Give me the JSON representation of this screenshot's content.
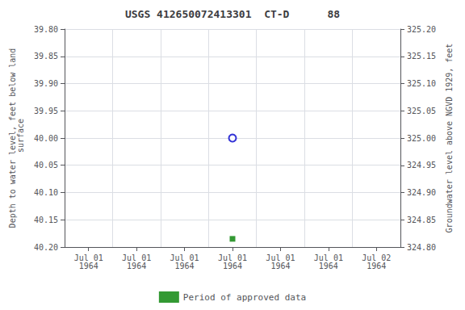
{
  "chart_data": {
    "type": "scatter",
    "title": "USGS 412650072413301  CT-D      88",
    "ylabel": "Depth to water level, feet below land\n surface",
    "y2label": "Groundwater level above NGVD 1929, feet",
    "categories": [
      "Jul 01\n1964",
      "Jul 01\n1964",
      "Jul 01\n1964",
      "Jul 01\n1964",
      "Jul 01\n1964",
      "Jul 01\n1964",
      "Jul 02\n1964"
    ],
    "series": [
      {
        "type": "scatter",
        "marker": "circle_open",
        "color": "#0000cc",
        "values": [
          null,
          null,
          null,
          40.0,
          null,
          null,
          null
        ]
      },
      {
        "type": "scatter",
        "name": "Period of approved data",
        "marker": "square",
        "color": "#008000",
        "values": [
          null,
          null,
          null,
          40.185,
          null,
          null,
          null
        ]
      }
    ],
    "ylim": [
      40.2,
      39.8
    ],
    "yticks": [
      {
        "value": 39.8,
        "label": "39.80"
      },
      {
        "value": 39.85,
        "label": "39.85"
      },
      {
        "value": 39.9,
        "label": "39.90"
      },
      {
        "value": 39.95,
        "label": "39.95"
      },
      {
        "value": 40.0,
        "label": "40.00"
      },
      {
        "value": 40.05,
        "label": "40.05"
      },
      {
        "value": 40.1,
        "label": "40.10"
      },
      {
        "value": 40.15,
        "label": "40.15"
      },
      {
        "value": 40.2,
        "label": "40.20"
      }
    ],
    "y2lim": [
      324.8,
      325.2
    ],
    "y2ticks": [
      {
        "value": 325.2,
        "label": "325.20"
      },
      {
        "value": 325.15,
        "label": "325.15"
      },
      {
        "value": 325.1,
        "label": "325.10"
      },
      {
        "value": 325.05,
        "label": "325.05"
      },
      {
        "value": 325.0,
        "label": "325.00"
      },
      {
        "value": 324.95,
        "label": "324.95"
      },
      {
        "value": 324.9,
        "label": "324.90"
      },
      {
        "value": 324.85,
        "label": "324.85"
      },
      {
        "value": 324.8,
        "label": "324.80"
      }
    ],
    "grid": true,
    "legend": "bottom"
  }
}
